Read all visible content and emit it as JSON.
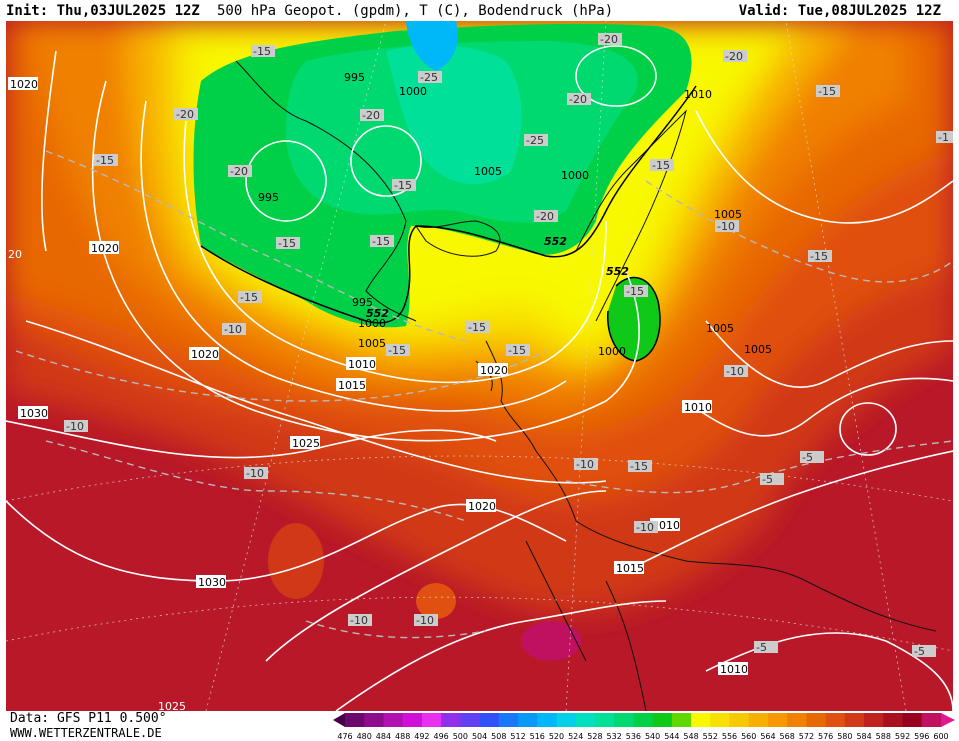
{
  "header": {
    "init": "Init: Thu,03JUL2025 12Z",
    "title": "500 hPa Geopot. (gpdm), T (C), Bodendruck (hPa)",
    "valid": "Valid: Tue,08JUL2025 12Z"
  },
  "footer": {
    "source": "Data: GFS P11 0.500°",
    "url": "WWW.WETTERZENTRALE.DE"
  },
  "legend": {
    "values": [
      "476",
      "480",
      "484",
      "488",
      "492",
      "496",
      "500",
      "504",
      "508",
      "512",
      "516",
      "520",
      "524",
      "528",
      "532",
      "536",
      "540",
      "544",
      "548",
      "552",
      "556",
      "560",
      "564",
      "568",
      "572",
      "576",
      "580",
      "584",
      "588",
      "592",
      "596",
      "600"
    ],
    "colors": [
      "#4a0048",
      "#6a0a6a",
      "#8c0c8c",
      "#b010b0",
      "#d010d8",
      "#e830f0",
      "#9030e8",
      "#6040f0",
      "#3050f8",
      "#1878f8",
      "#0898f8",
      "#00b8f8",
      "#00d0e8",
      "#00e0c0",
      "#00e098",
      "#00d870",
      "#00d048",
      "#10c818",
      "#60d800",
      "#f8f800",
      "#f8e000",
      "#f8c800",
      "#f8b000",
      "#f89800",
      "#f08000",
      "#e86800",
      "#e05010",
      "#d03818",
      "#c02020",
      "#a81020",
      "#980020",
      "#c01060",
      "#e01890"
    ]
  },
  "map_labels": {
    "pressure": [
      "1020",
      "995",
      "1000",
      "1020",
      "995",
      "1005",
      "1000",
      "1010",
      "1005",
      "1020",
      "995",
      "1000",
      "1005",
      "1010",
      "1015",
      "1020",
      "1000",
      "1005",
      "1010",
      "1005",
      "1025",
      "1030",
      "1020",
      "1030",
      "1010",
      "1015",
      "1010",
      "1025",
      "20"
    ],
    "temperature": [
      "-15",
      "-20",
      "-25",
      "-20",
      "-20",
      "-20",
      "-15",
      "-20",
      "-25",
      "-20",
      "-15",
      "-15",
      "-20",
      "-15",
      "-15",
      "-15",
      "-10",
      "-15",
      "-15",
      "-15",
      "-10",
      "-10",
      "-10",
      "-10",
      "-10",
      "-10",
      "-15",
      "-10",
      "-15",
      "-5",
      "-5",
      "-10",
      "-10",
      "-5",
      "-5",
      "-15",
      "-1"
    ],
    "geopotential": [
      "552",
      "552",
      "552"
    ]
  }
}
